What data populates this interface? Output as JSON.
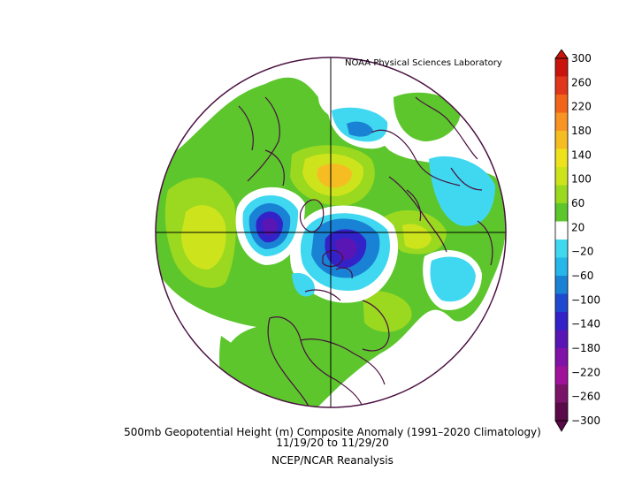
{
  "credit": "NOAA Physical Sciences Laboratory",
  "title": "500mb Geopotential Height (m) Composite Anomaly (1991–2020 Climatology)",
  "dates": "11/19/20   to 11/29/20",
  "dataset": "NCEP/NCAR Reanalysis",
  "colorbar": {
    "labels": [
      "300",
      "260",
      "220",
      "180",
      "140",
      "100",
      "60",
      "20",
      "−20",
      "−60",
      "−100",
      "−140",
      "−180",
      "−220",
      "−260",
      "−300"
    ],
    "colors": [
      "#c8140c",
      "#e0361a",
      "#f2641a",
      "#f89424",
      "#f5bd22",
      "#eee21c",
      "#cde41c",
      "#9bd820",
      "#5cc62c",
      "#ffffff",
      "#3fd8f0",
      "#25b6ea",
      "#1a82d4",
      "#1f4ad0",
      "#3222c8",
      "#5a16b4",
      "#8012a8",
      "#a0129a",
      "#7a1468",
      "#5a0a48"
    ]
  },
  "map_colors": {
    "outline": "#4a1040",
    "green": "#5cc62c",
    "lightgreen": "#9bd820",
    "yellow": "#cde41c",
    "orange": "#f5bd22",
    "cyan": "#3fd8f0",
    "blue": "#1a82d4",
    "purple": "#3222c8"
  }
}
